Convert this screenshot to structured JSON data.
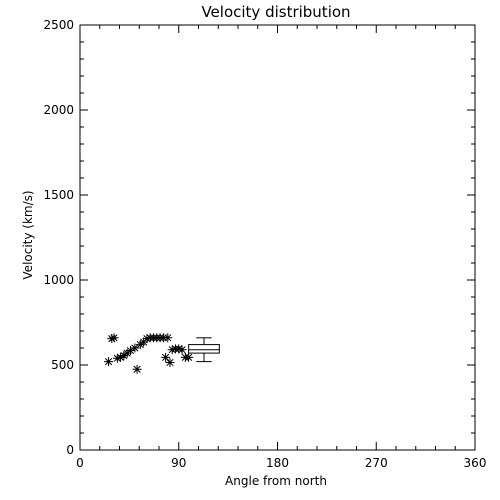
{
  "chart_data": {
    "type": "scatter",
    "title": "Velocity distribution",
    "xlabel": "Angle from north",
    "ylabel": "Velocity (km/s)",
    "xlim": [
      0,
      360
    ],
    "ylim": [
      0,
      2500
    ],
    "xticks": [
      0,
      90,
      180,
      270,
      360
    ],
    "yticks": [
      0,
      500,
      1000,
      1500,
      2000,
      2500
    ],
    "grid": false,
    "marker": "asterisk",
    "points": [
      {
        "x": 26,
        "y": 520
      },
      {
        "x": 29,
        "y": 655
      },
      {
        "x": 31,
        "y": 660
      },
      {
        "x": 34,
        "y": 540
      },
      {
        "x": 37,
        "y": 545
      },
      {
        "x": 40,
        "y": 555
      },
      {
        "x": 43,
        "y": 570
      },
      {
        "x": 46,
        "y": 585
      },
      {
        "x": 50,
        "y": 600
      },
      {
        "x": 52,
        "y": 475
      },
      {
        "x": 55,
        "y": 620
      },
      {
        "x": 58,
        "y": 635
      },
      {
        "x": 61,
        "y": 655
      },
      {
        "x": 64,
        "y": 660
      },
      {
        "x": 67,
        "y": 660
      },
      {
        "x": 70,
        "y": 660
      },
      {
        "x": 73,
        "y": 660
      },
      {
        "x": 76,
        "y": 660
      },
      {
        "x": 78,
        "y": 545
      },
      {
        "x": 80,
        "y": 660
      },
      {
        "x": 82,
        "y": 515
      },
      {
        "x": 84,
        "y": 590
      },
      {
        "x": 87,
        "y": 595
      },
      {
        "x": 90,
        "y": 595
      },
      {
        "x": 93,
        "y": 590
      },
      {
        "x": 96,
        "y": 545
      },
      {
        "x": 99,
        "y": 545
      }
    ],
    "boxplot": {
      "x_center": 113,
      "x_halfwidth": 14,
      "min": 520,
      "q1": 570,
      "median": 590,
      "q3": 620,
      "max": 660
    }
  }
}
